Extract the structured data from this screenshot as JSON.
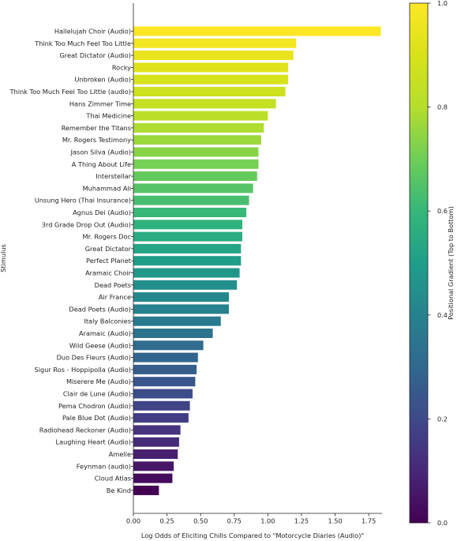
{
  "chart_data": {
    "type": "bar",
    "orientation": "horizontal",
    "xlabel": "Log Odds of Eliciting Chills Compared to \"Motorcycle Diaries (Audio)\"",
    "ylabel": "Stimulus",
    "xlim": [
      0,
      1.85
    ],
    "xticks": [
      0.0,
      0.25,
      0.5,
      0.75,
      1.0,
      1.25,
      1.5,
      1.75
    ],
    "xtick_labels": [
      "0.00",
      "0.25",
      "0.50",
      "0.75",
      "1.00",
      "1.25",
      "1.50",
      "1.75"
    ],
    "grid": false,
    "colormap": "viridis",
    "colorbar": {
      "label": "Positional Gradient (Top to Bottom)",
      "ticks": [
        0.0,
        0.2,
        0.4,
        0.6,
        0.8,
        1.0
      ],
      "tick_labels": [
        "0.0",
        "0.2",
        "0.4",
        "0.6",
        "0.8",
        "1.0"
      ],
      "position": "right"
    },
    "categories": [
      "Hallelujah Choir (Audio)",
      "Think Too Much Feel Too Little",
      "Great Dictator (Audio)",
      "Rocky",
      "Unbroken (Audio)",
      "Think Too Much Feel Too Little (audio)",
      "Hans Zimmer Time",
      "Thai Medicine",
      "Remember the Titans",
      "Mr. Rogers Testimony",
      "Jason Silva (Audio)",
      "A Thing About Life",
      "Interstellar",
      "Muhammad Ali",
      "Unsung Hero (Thai Insurance)",
      "Agnus Dei (Audio)",
      "3rd Grade Drop Out (Audio)",
      "Mr. Rogers Doc",
      "Great Dictator",
      "Perfect Planet",
      "Aramaic Choir",
      "Dead Poets",
      "Air France",
      "Dead Poets (Audio)",
      "Italy Balconies",
      "Aramaic (Audio)",
      "Wild Geese (Audio)",
      "Duo Des Fleurs (Audio)",
      "Sigur Ros - Hoppipolla (Audio)",
      "Miserere Me (Audio)",
      "Clair de Lune (Audio)",
      "Pema Chodron (Audio)",
      "Pale Blue Dot (Audio)",
      "Radiohead Reckoner (Audio)",
      "Laughing Heart (Audio)",
      "Amelie",
      "Feynman (audio)",
      "Cloud Atlas",
      "Be Kind"
    ],
    "values": [
      1.84,
      1.21,
      1.19,
      1.15,
      1.15,
      1.13,
      1.06,
      1.0,
      0.97,
      0.95,
      0.93,
      0.93,
      0.92,
      0.89,
      0.86,
      0.84,
      0.81,
      0.81,
      0.8,
      0.8,
      0.79,
      0.77,
      0.71,
      0.71,
      0.65,
      0.59,
      0.52,
      0.48,
      0.47,
      0.46,
      0.44,
      0.42,
      0.41,
      0.35,
      0.34,
      0.33,
      0.3,
      0.29,
      0.19
    ]
  }
}
